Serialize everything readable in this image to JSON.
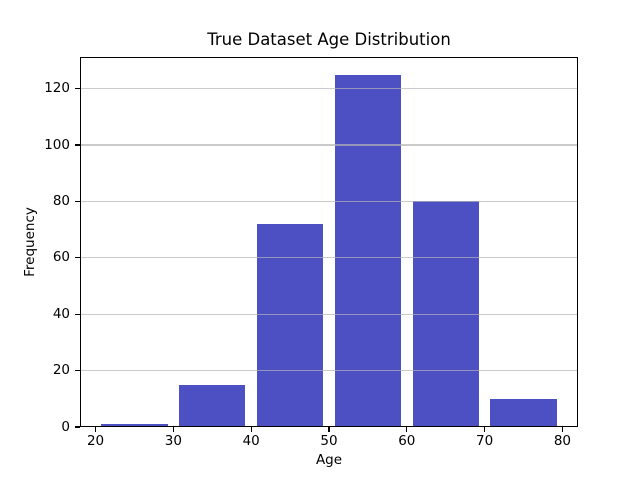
{
  "figure": {
    "background": "#ffffff"
  },
  "chart_data": {
    "type": "bar",
    "title": "True Dataset Age Distribution",
    "xlabel": "Age",
    "ylabel": "Frequency",
    "categories": [
      "20-30",
      "30-40",
      "40-50",
      "50-60",
      "60-70",
      "70-80"
    ],
    "bar_centers": [
      25,
      35,
      45,
      55,
      65,
      75
    ],
    "bar_width": 8.5,
    "values": [
      1,
      15,
      72,
      125,
      80,
      10
    ],
    "x_ticks": [
      20,
      30,
      40,
      50,
      60,
      70,
      80
    ],
    "y_ticks": [
      0,
      20,
      40,
      60,
      80,
      100,
      120
    ],
    "xlim": [
      18,
      82
    ],
    "ylim": [
      0,
      131.25
    ],
    "bar_color": "#4d50c3",
    "grid_axis": "y",
    "grid_color": "#b4b4b4",
    "grid_opacity": 0.7,
    "spine_color": "#000000",
    "legend_position": "none"
  }
}
